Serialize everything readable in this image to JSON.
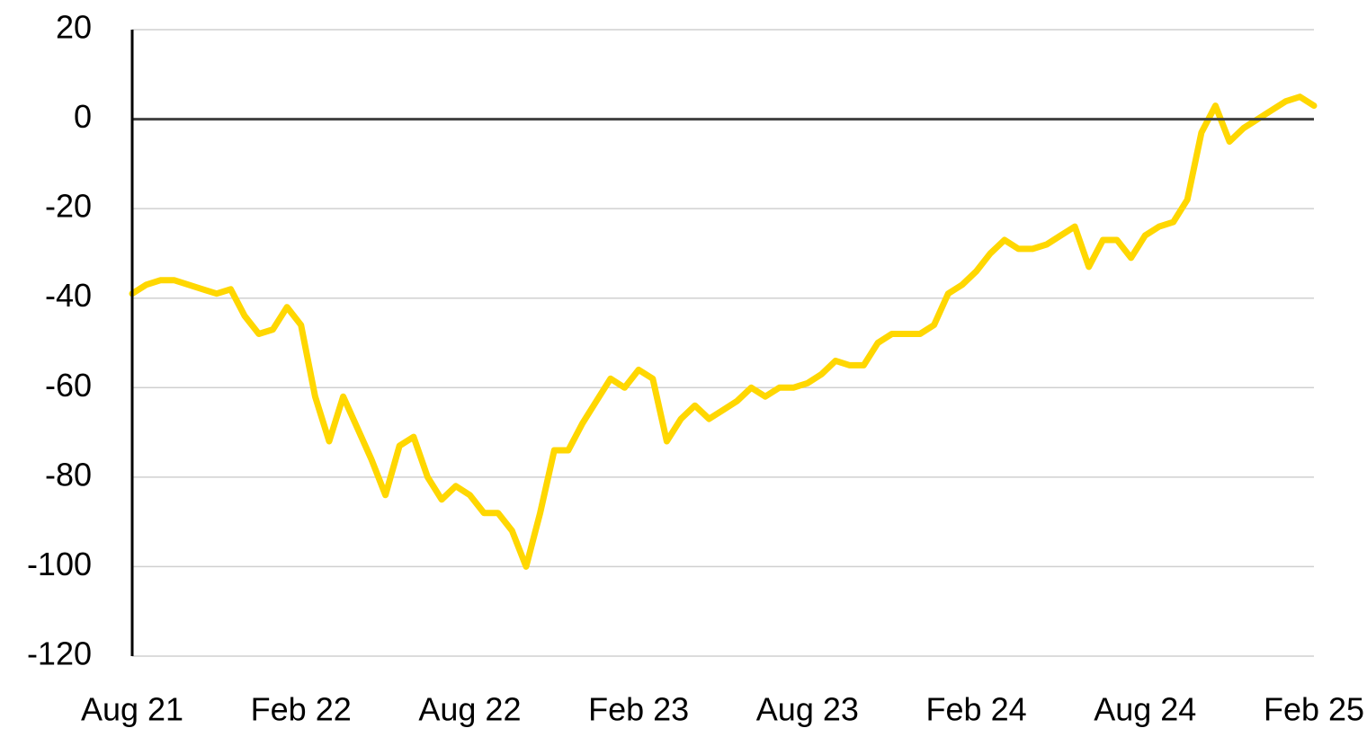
{
  "chart_data": {
    "type": "line",
    "categories": [
      "Aug 21",
      null,
      null,
      null,
      null,
      null,
      null,
      null,
      null,
      null,
      null,
      null,
      "Feb 22",
      null,
      null,
      null,
      null,
      null,
      null,
      null,
      null,
      null,
      null,
      null,
      "Aug 22",
      null,
      null,
      null,
      null,
      null,
      null,
      null,
      null,
      null,
      null,
      null,
      "Feb 23",
      null,
      null,
      null,
      null,
      null,
      null,
      null,
      null,
      null,
      null,
      null,
      "Aug 23",
      null,
      null,
      null,
      null,
      null,
      null,
      null,
      null,
      null,
      null,
      null,
      "Feb 24",
      null,
      null,
      null,
      null,
      null,
      null,
      null,
      null,
      null,
      null,
      null,
      "Aug 24",
      null,
      null,
      null,
      null,
      null,
      null,
      null,
      null,
      null,
      null,
      null,
      "Feb 25"
    ],
    "series": [
      {
        "color": "#ffd700",
        "values": [
          -39,
          -37,
          -36,
          -36,
          -37,
          -38,
          -39,
          -38,
          -44,
          -48,
          -47,
          -42,
          -46,
          -62,
          -72,
          -62,
          -69,
          -76,
          -84,
          -73,
          -71,
          -80,
          -85,
          -82,
          -84,
          -88,
          -88,
          -92,
          -100,
          -88,
          -74,
          -74,
          -68,
          -63,
          -58,
          -60,
          -56,
          -58,
          -72,
          -67,
          -64,
          -67,
          -65,
          -63,
          -60,
          -62,
          -60,
          -60,
          -59,
          -57,
          -54,
          -55,
          -55,
          -50,
          -48,
          -48,
          -48,
          -46,
          -39,
          -37,
          -34,
          -30,
          -27,
          -29,
          -29,
          -28,
          -26,
          -24,
          -33,
          -27,
          -27,
          -31,
          -26,
          -24,
          -23,
          -18,
          -3,
          3,
          -5,
          -2,
          0,
          2,
          4,
          5,
          3
        ]
      }
    ],
    "ylim": [
      -120,
      20
    ],
    "yticks": [
      -120,
      -100,
      -80,
      -60,
      -40,
      -20,
      0,
      20
    ],
    "grid": true
  }
}
